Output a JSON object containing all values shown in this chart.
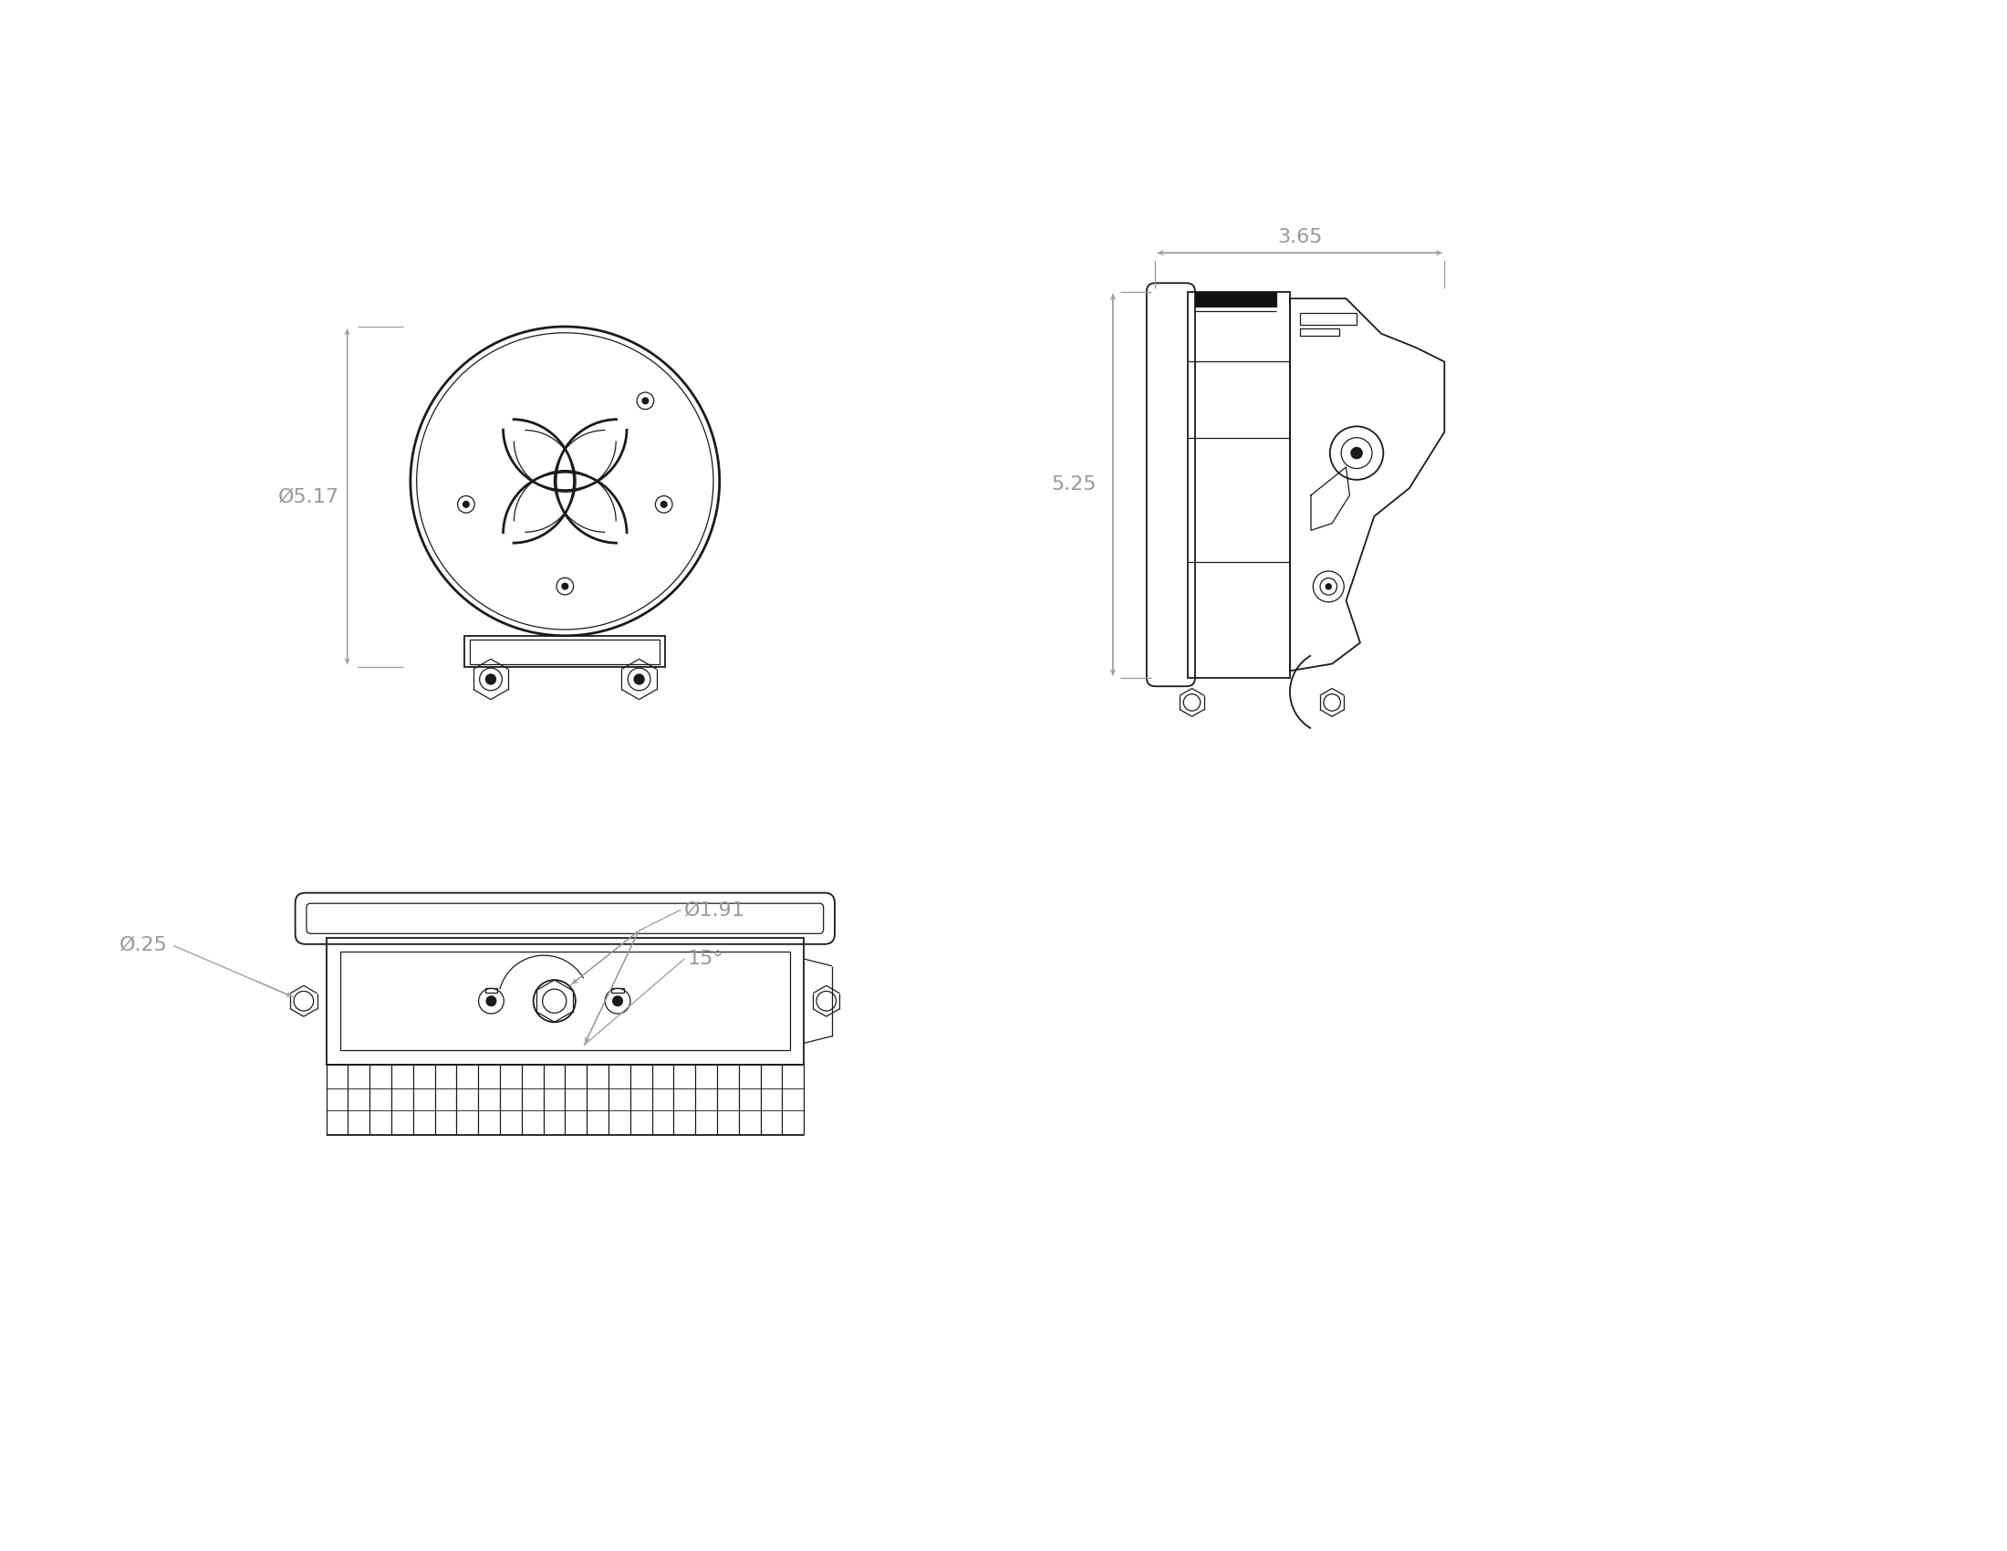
{
  "bg_color": "#ffffff",
  "line_color": "#1a1a1a",
  "dim_color": "#999999",
  "lw_thick": 2.0,
  "lw_med": 1.3,
  "lw_thin": 0.9,
  "lw_dim": 0.9,
  "fs_dim": 16,
  "dim_517": "Ø5.17",
  "dim_365": "3.65",
  "dim_525": "5.25",
  "dim_191": "Ø1.91",
  "dim_025": "Ø.25",
  "dim_15": "15°"
}
